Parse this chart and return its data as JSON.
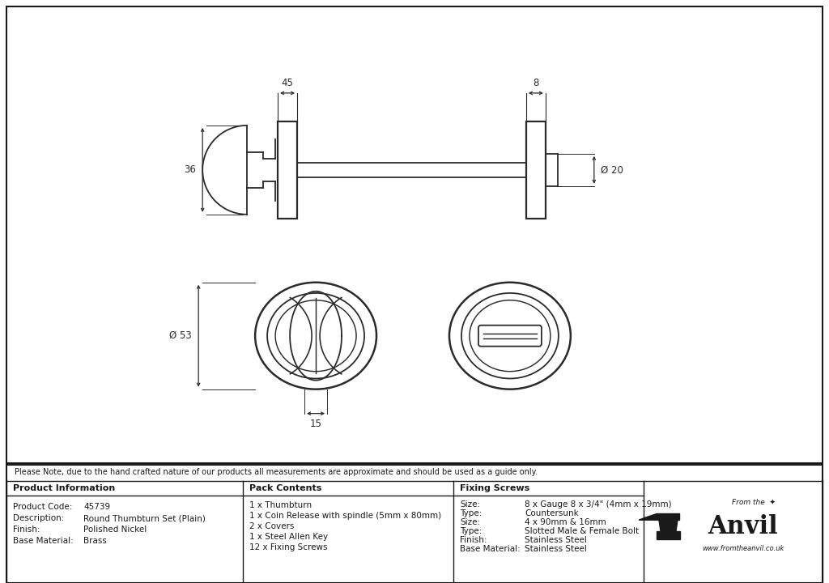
{
  "bg_color": "#ffffff",
  "drawing_bg": "#ffffff",
  "border_color": "#1a1a1a",
  "line_color": "#2a2a2a",
  "dim_color": "#2a2a2a",
  "note_text": "Please Note, due to the hand crafted nature of our products all measurements are approximate and should be used as a guide only.",
  "product_info": {
    "col1": [
      "Product Code:",
      "Description:",
      "Finish:",
      "Base Material:"
    ],
    "col1_vals": [
      "45739",
      "Round Thumbturn Set (Plain)",
      "Polished Nickel",
      "Brass"
    ],
    "col2": [
      "1 x Thumbturn",
      "1 x Coin Release with spindle (5mm x 80mm)",
      "2 x Covers",
      "1 x Steel Allen Key",
      "12 x Fixing Screws"
    ],
    "col3_labels": [
      "Size:",
      "Type:",
      "Size:",
      "Type:",
      "Finish:",
      "Base Material:"
    ],
    "col3_vals": [
      "8 x Gauge 8 x 3/4\" (4mm x 19mm)",
      "Countersunk",
      "4 x 90mm & 16mm",
      "Slotted Male & Female Bolt",
      "Stainless Steel",
      "Stainless Steel"
    ]
  }
}
